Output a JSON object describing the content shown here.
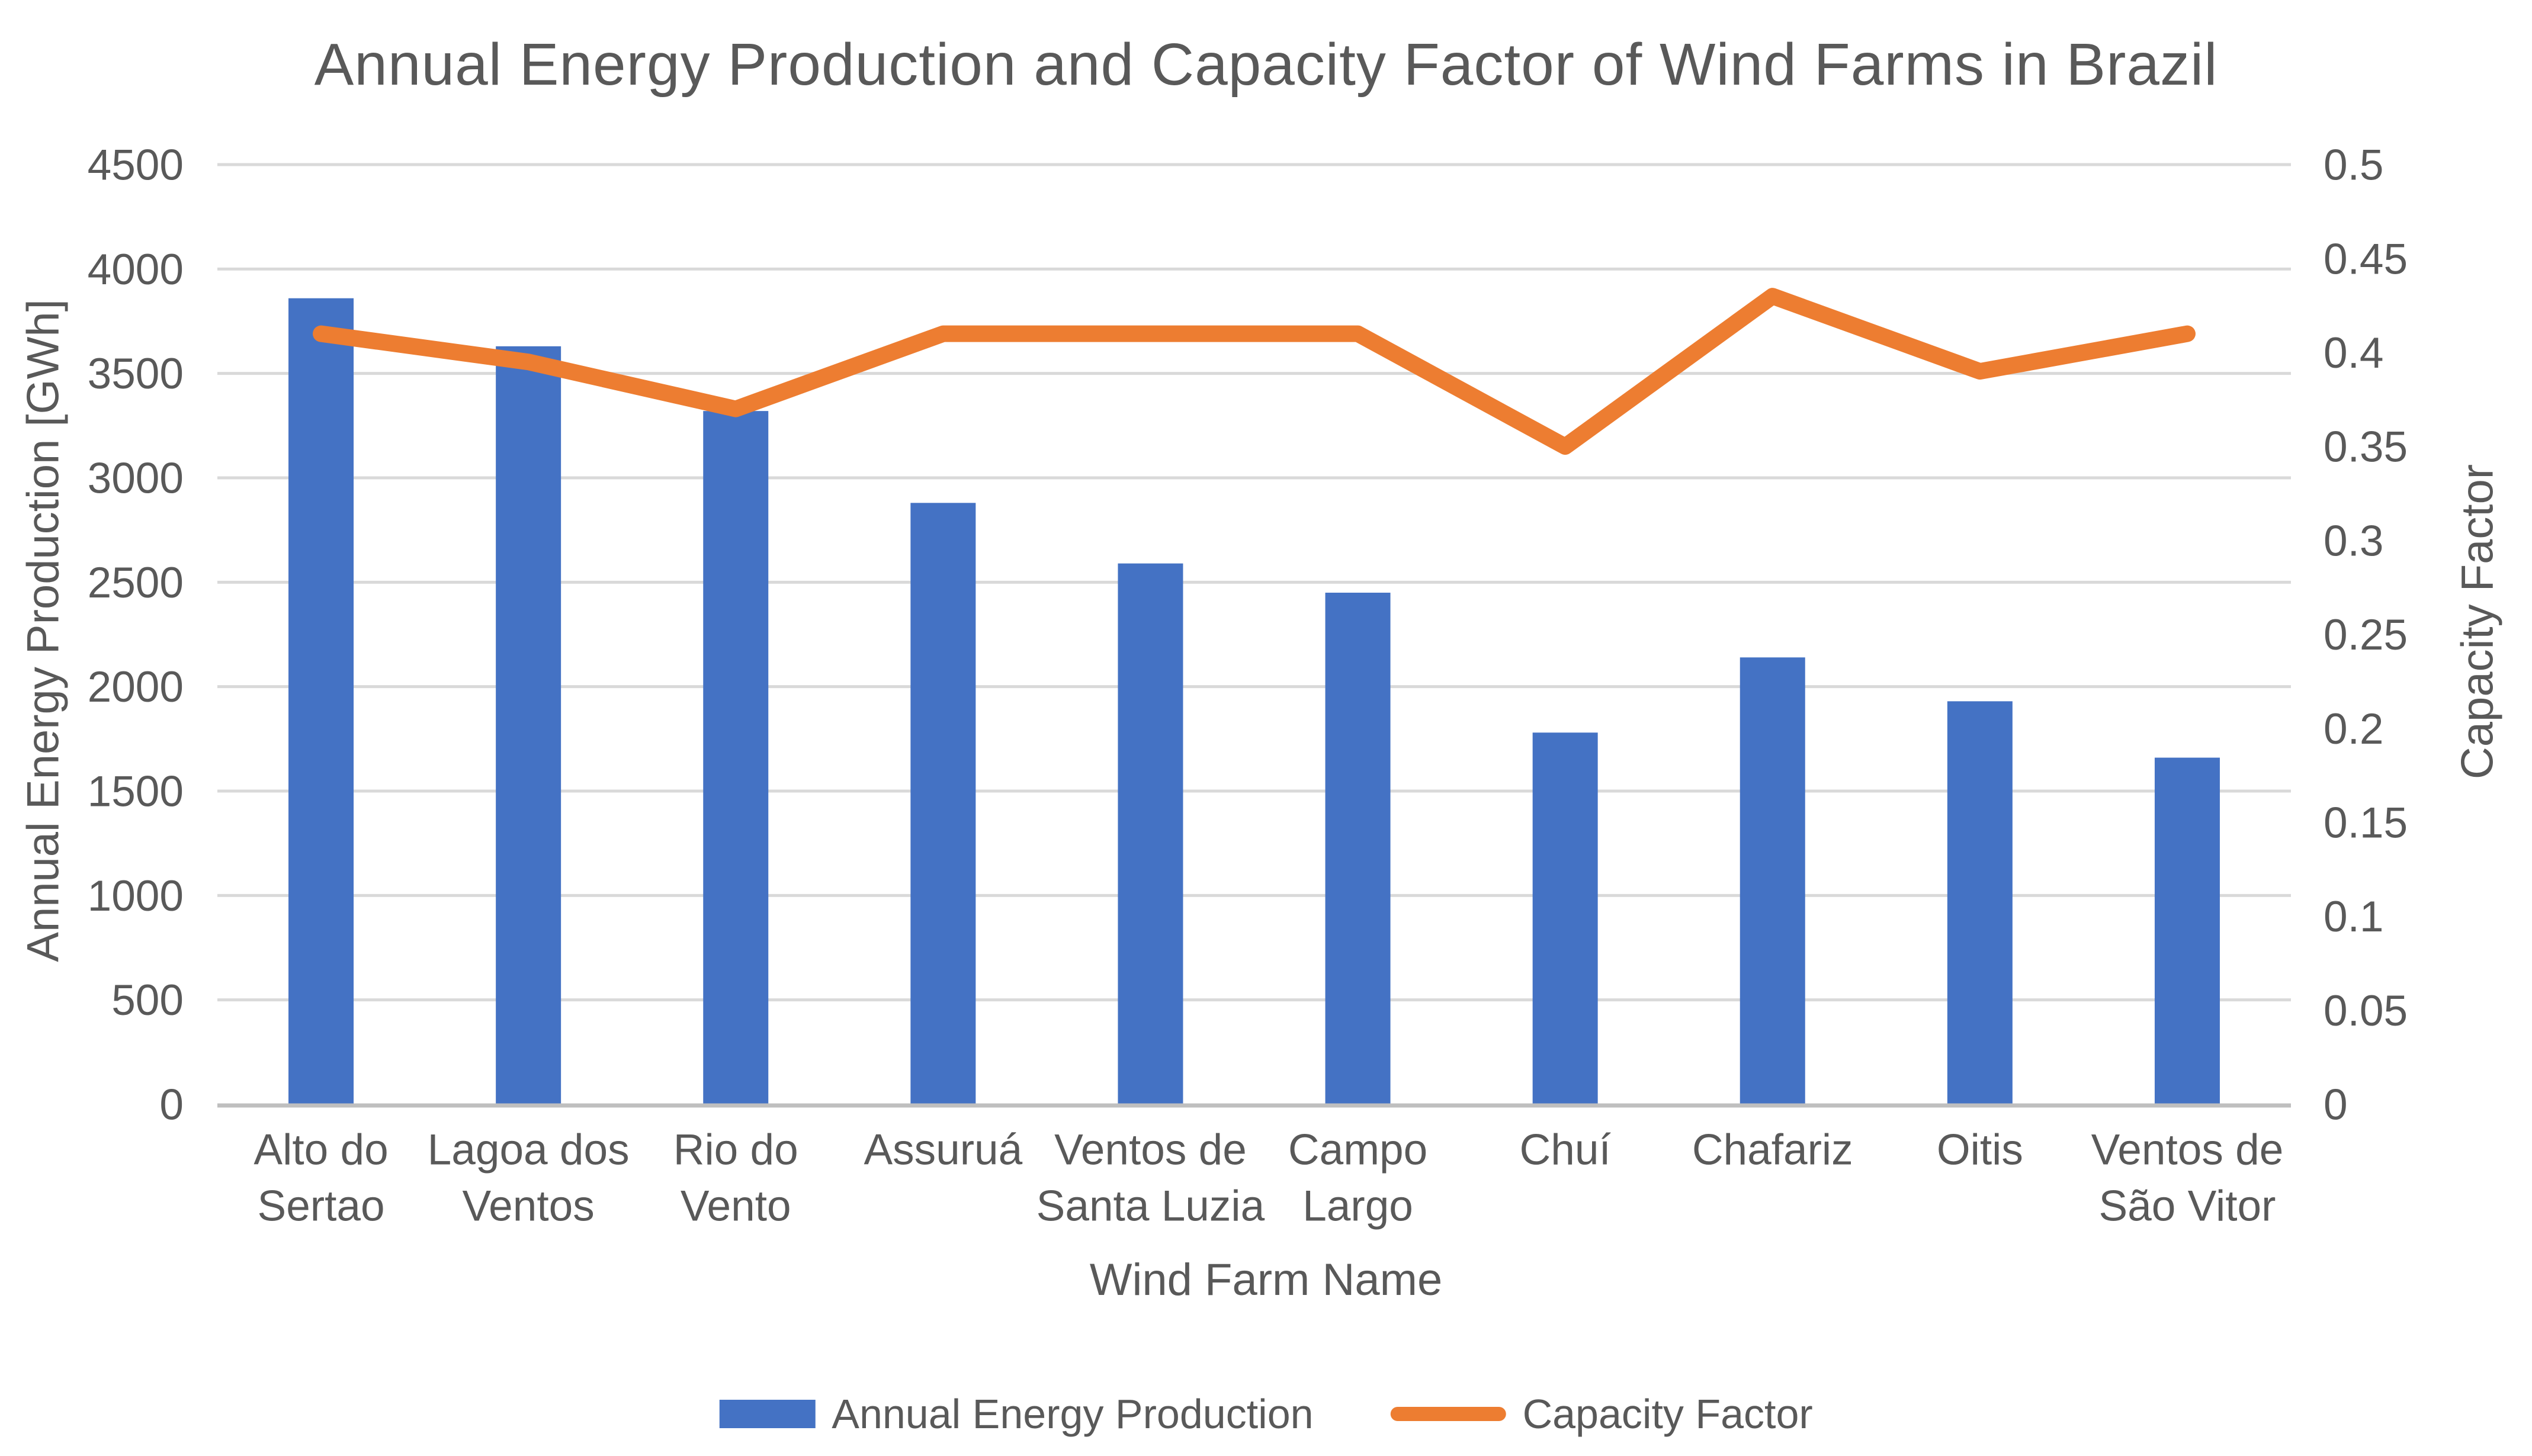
{
  "chart_data": {
    "type": "combo-bar-line",
    "title": "Annual Energy Production and Capacity Factor of Wind Farms in Brazil",
    "xlabel": "Wind Farm Name",
    "ylabel_left": "Annual Energy Production [GWh]",
    "ylabel_right": "Capacity Factor",
    "categories": [
      "Alto do Sertao",
      "Lagoa dos Ventos",
      "Rio do Vento",
      "Assuruá",
      "Ventos de Santa Luzia",
      "Campo Largo",
      "Chuí",
      "Chafariz",
      "Oitis",
      "Ventos de São Vitor"
    ],
    "category_label_lines": [
      [
        "Alto do",
        "Sertao"
      ],
      [
        "Lagoa dos",
        "Ventos"
      ],
      [
        "Rio do",
        "Vento"
      ],
      [
        "Assuruá"
      ],
      [
        "Ventos de",
        "Santa Luzia"
      ],
      [
        "Campo",
        "Largo"
      ],
      [
        "Chuí"
      ],
      [
        "Chafariz"
      ],
      [
        "Oitis"
      ],
      [
        "Ventos de",
        "São Vitor"
      ]
    ],
    "series": [
      {
        "name": "Annual Energy Production",
        "type": "bar",
        "axis": "left",
        "color": "#4472C4",
        "values": [
          3860,
          3630,
          3320,
          2880,
          2590,
          2450,
          1780,
          2140,
          1930,
          1660
        ]
      },
      {
        "name": "Capacity Factor",
        "type": "line",
        "axis": "right",
        "color": "#ED7D31",
        "values": [
          0.41,
          0.395,
          0.37,
          0.41,
          0.41,
          0.41,
          0.35,
          0.43,
          0.39,
          0.41
        ]
      }
    ],
    "left_axis": {
      "min": 0,
      "max": 4500,
      "step": 500,
      "tick_labels": [
        "0",
        "500",
        "1000",
        "1500",
        "2000",
        "2500",
        "3000",
        "3500",
        "4000",
        "4500"
      ]
    },
    "right_axis": {
      "min": 0,
      "max": 0.5,
      "step": 0.05,
      "tick_labels": [
        "0",
        "0.05",
        "0.1",
        "0.15",
        "0.2",
        "0.25",
        "0.3",
        "0.35",
        "0.4",
        "0.45",
        "0.5"
      ]
    },
    "grid": true,
    "legend_position": "bottom",
    "styles": {
      "grid_color": "#D9D9D9",
      "axis_line_color": "#BFBFBF",
      "text_color": "#595959",
      "background": "#FFFFFF"
    }
  }
}
